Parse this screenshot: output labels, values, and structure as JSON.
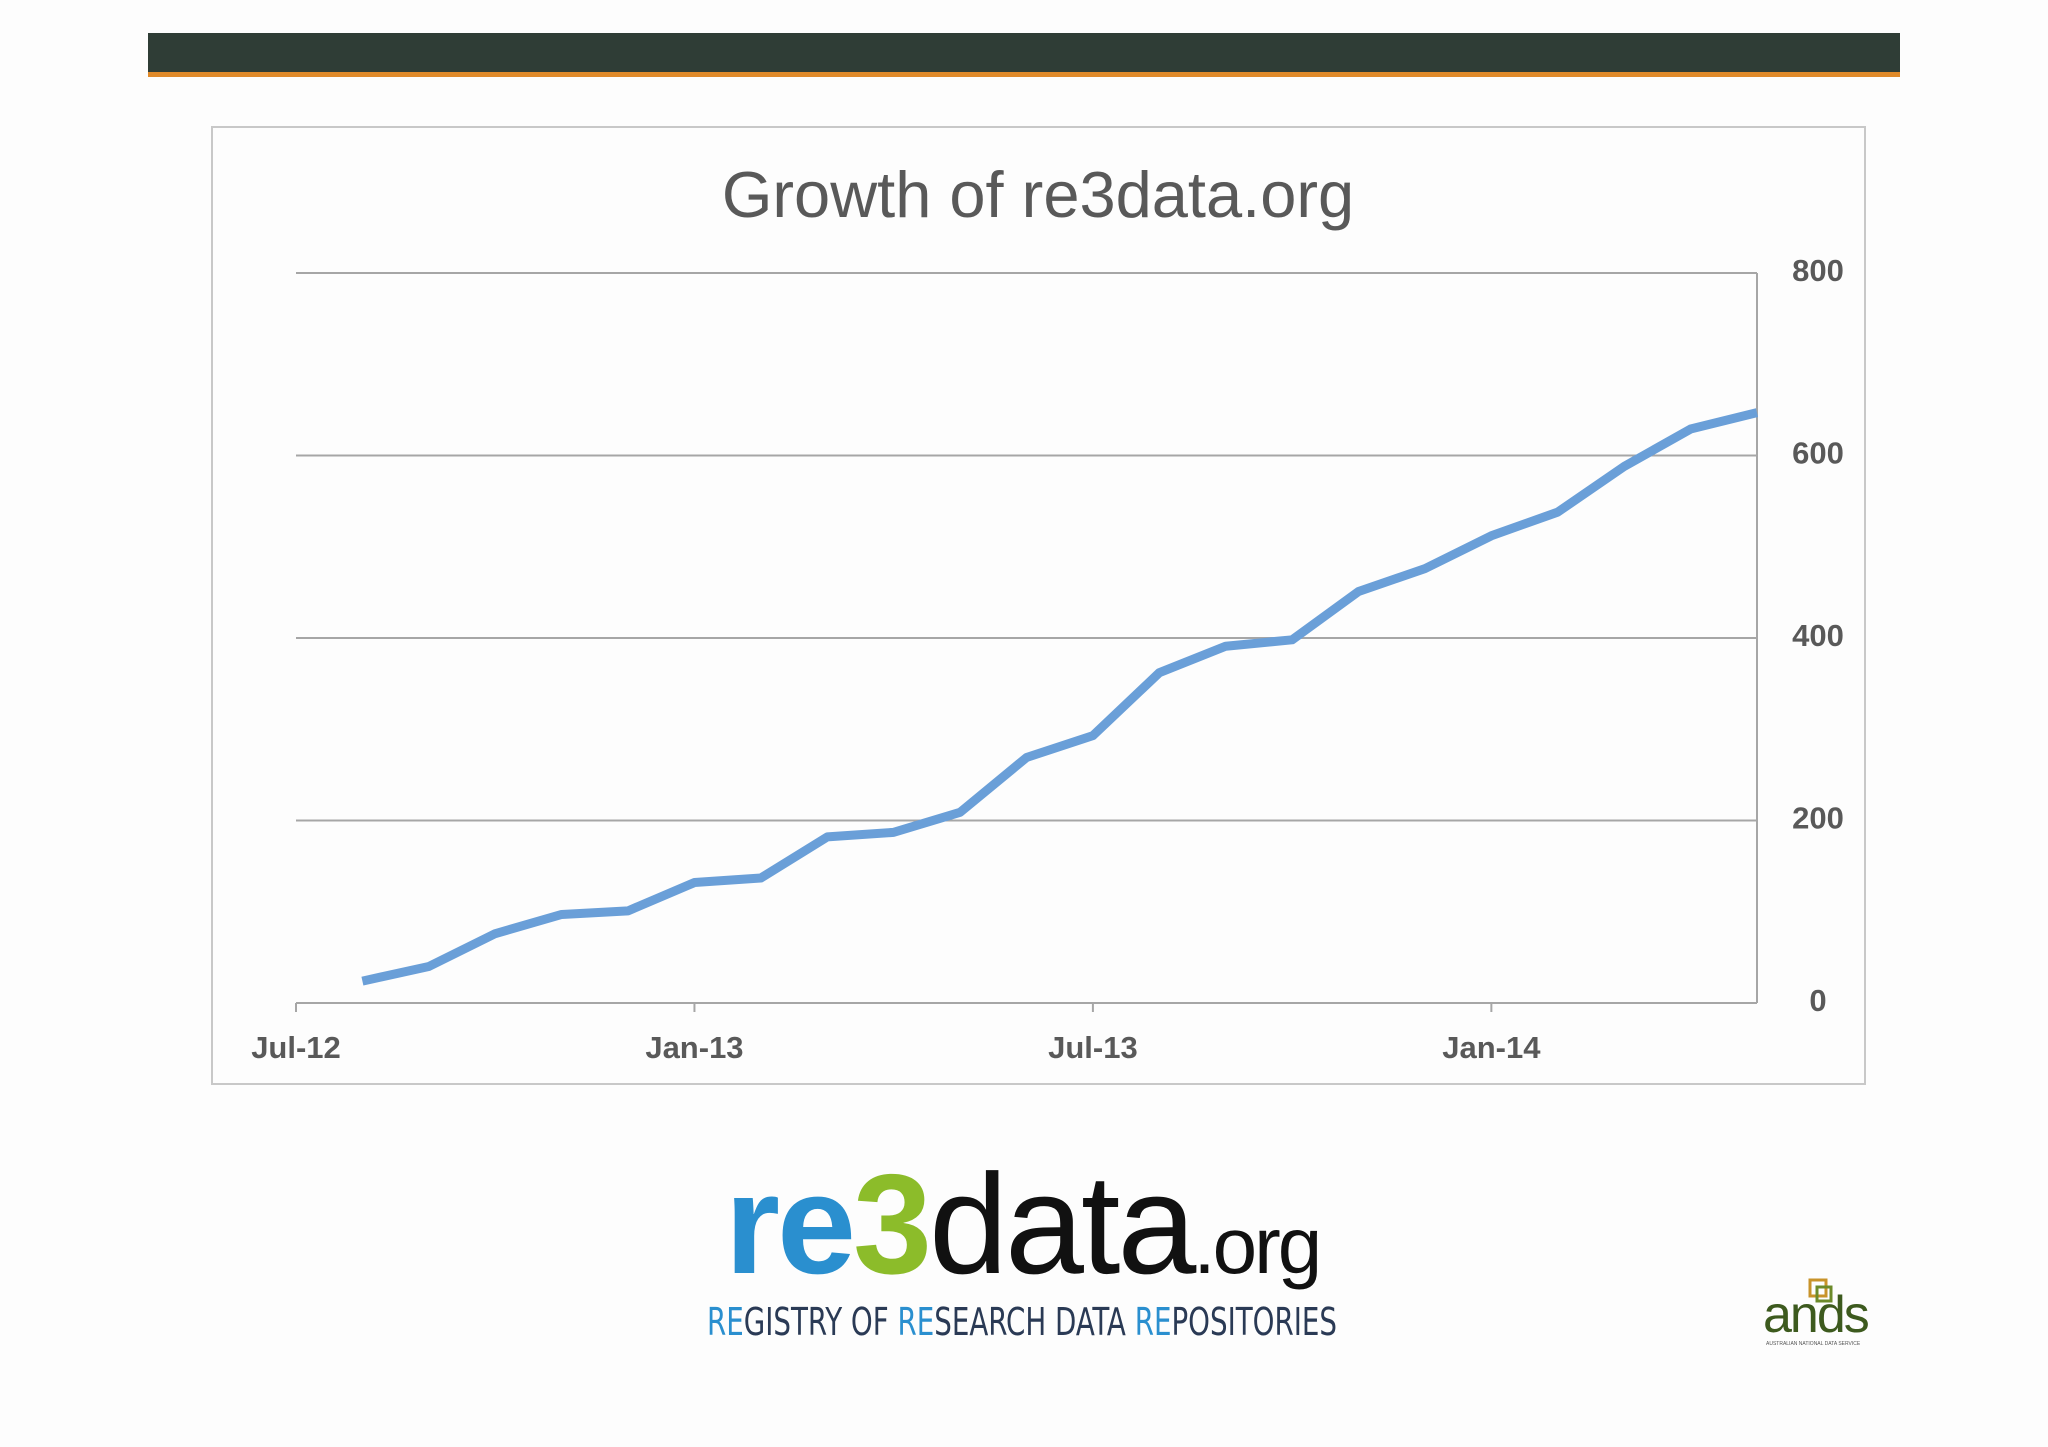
{
  "chart_data": {
    "type": "line",
    "title": "Growth of re3data.org",
    "x": [
      "2012-08",
      "2012-09",
      "2012-10",
      "2012-11",
      "2012-12",
      "2013-01",
      "2013-02",
      "2013-03",
      "2013-04",
      "2013-05",
      "2013-06",
      "2013-07",
      "2013-08",
      "2013-09",
      "2013-10",
      "2013-11",
      "2013-12",
      "2014-01",
      "2014-02",
      "2014-03",
      "2014-04",
      "2014-05"
    ],
    "series": [
      {
        "color": "#6a9fd8",
        "values": [
          24,
          40,
          76,
          97,
          101,
          132,
          137,
          182,
          187,
          209,
          269,
          293,
          362,
          391,
          398,
          451,
          476,
          512,
          538,
          588,
          629,
          647
        ]
      }
    ],
    "xlim": [
      "2012-07",
      "2014-05"
    ],
    "xticks": [
      {
        "value": "2012-07",
        "label": "Jul-12"
      },
      {
        "value": "2013-01",
        "label": "Jan-13"
      },
      {
        "value": "2013-07",
        "label": "Jul-13"
      },
      {
        "value": "2014-01",
        "label": "Jan-14"
      }
    ],
    "ylim": [
      0,
      800
    ],
    "yticks": [
      0,
      200,
      400,
      600,
      800
    ],
    "grid": true,
    "y_axis_side": "right"
  },
  "logo": {
    "parts": [
      "re",
      "3",
      "data",
      ".org"
    ],
    "tagline": [
      "RE",
      "GISTRY OF ",
      "RE",
      "SEARCH DATA ",
      "RE",
      "POSITORIES"
    ]
  },
  "partner": {
    "name": "ands",
    "full_name": "AUSTRALIAN NATIONAL DATA SERVICE"
  }
}
